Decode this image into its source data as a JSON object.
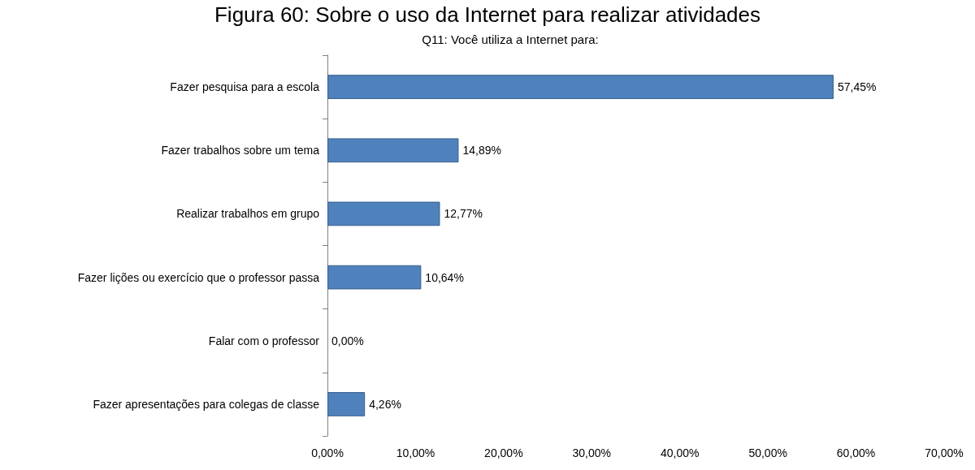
{
  "chart_data": {
    "type": "bar",
    "orientation": "horizontal",
    "title": "Figura 60: Sobre o uso da Internet para realizar atividades",
    "subtitle": "Q11: Você utiliza a Internet para:",
    "categories": [
      "Fazer pesquisa para a escola",
      "Fazer trabalhos sobre um tema",
      "Realizar trabalhos em grupo",
      "Fazer lições ou exercício que o professor passa",
      "Falar com o professor",
      "Fazer apresentações para colegas de classe"
    ],
    "values": [
      57.45,
      14.89,
      12.77,
      10.64,
      0,
      4.26
    ],
    "value_labels": [
      "57,45%",
      "14,89%",
      "12,77%",
      "10,64%",
      "0,00%",
      "4,26%"
    ],
    "color": "#4f81bd",
    "xlim": [
      0,
      70
    ],
    "xticks": [
      {
        "value": 0,
        "label": "0,00%"
      },
      {
        "value": 10,
        "label": "10,00%"
      },
      {
        "value": 20,
        "label": "20,00%"
      },
      {
        "value": 30,
        "label": "30,00%"
      },
      {
        "value": 40,
        "label": "40,00%"
      },
      {
        "value": 50,
        "label": "50,00%"
      },
      {
        "value": 60,
        "label": "60,00%"
      },
      {
        "value": 70,
        "label": "70,00%"
      }
    ],
    "grid": false
  }
}
